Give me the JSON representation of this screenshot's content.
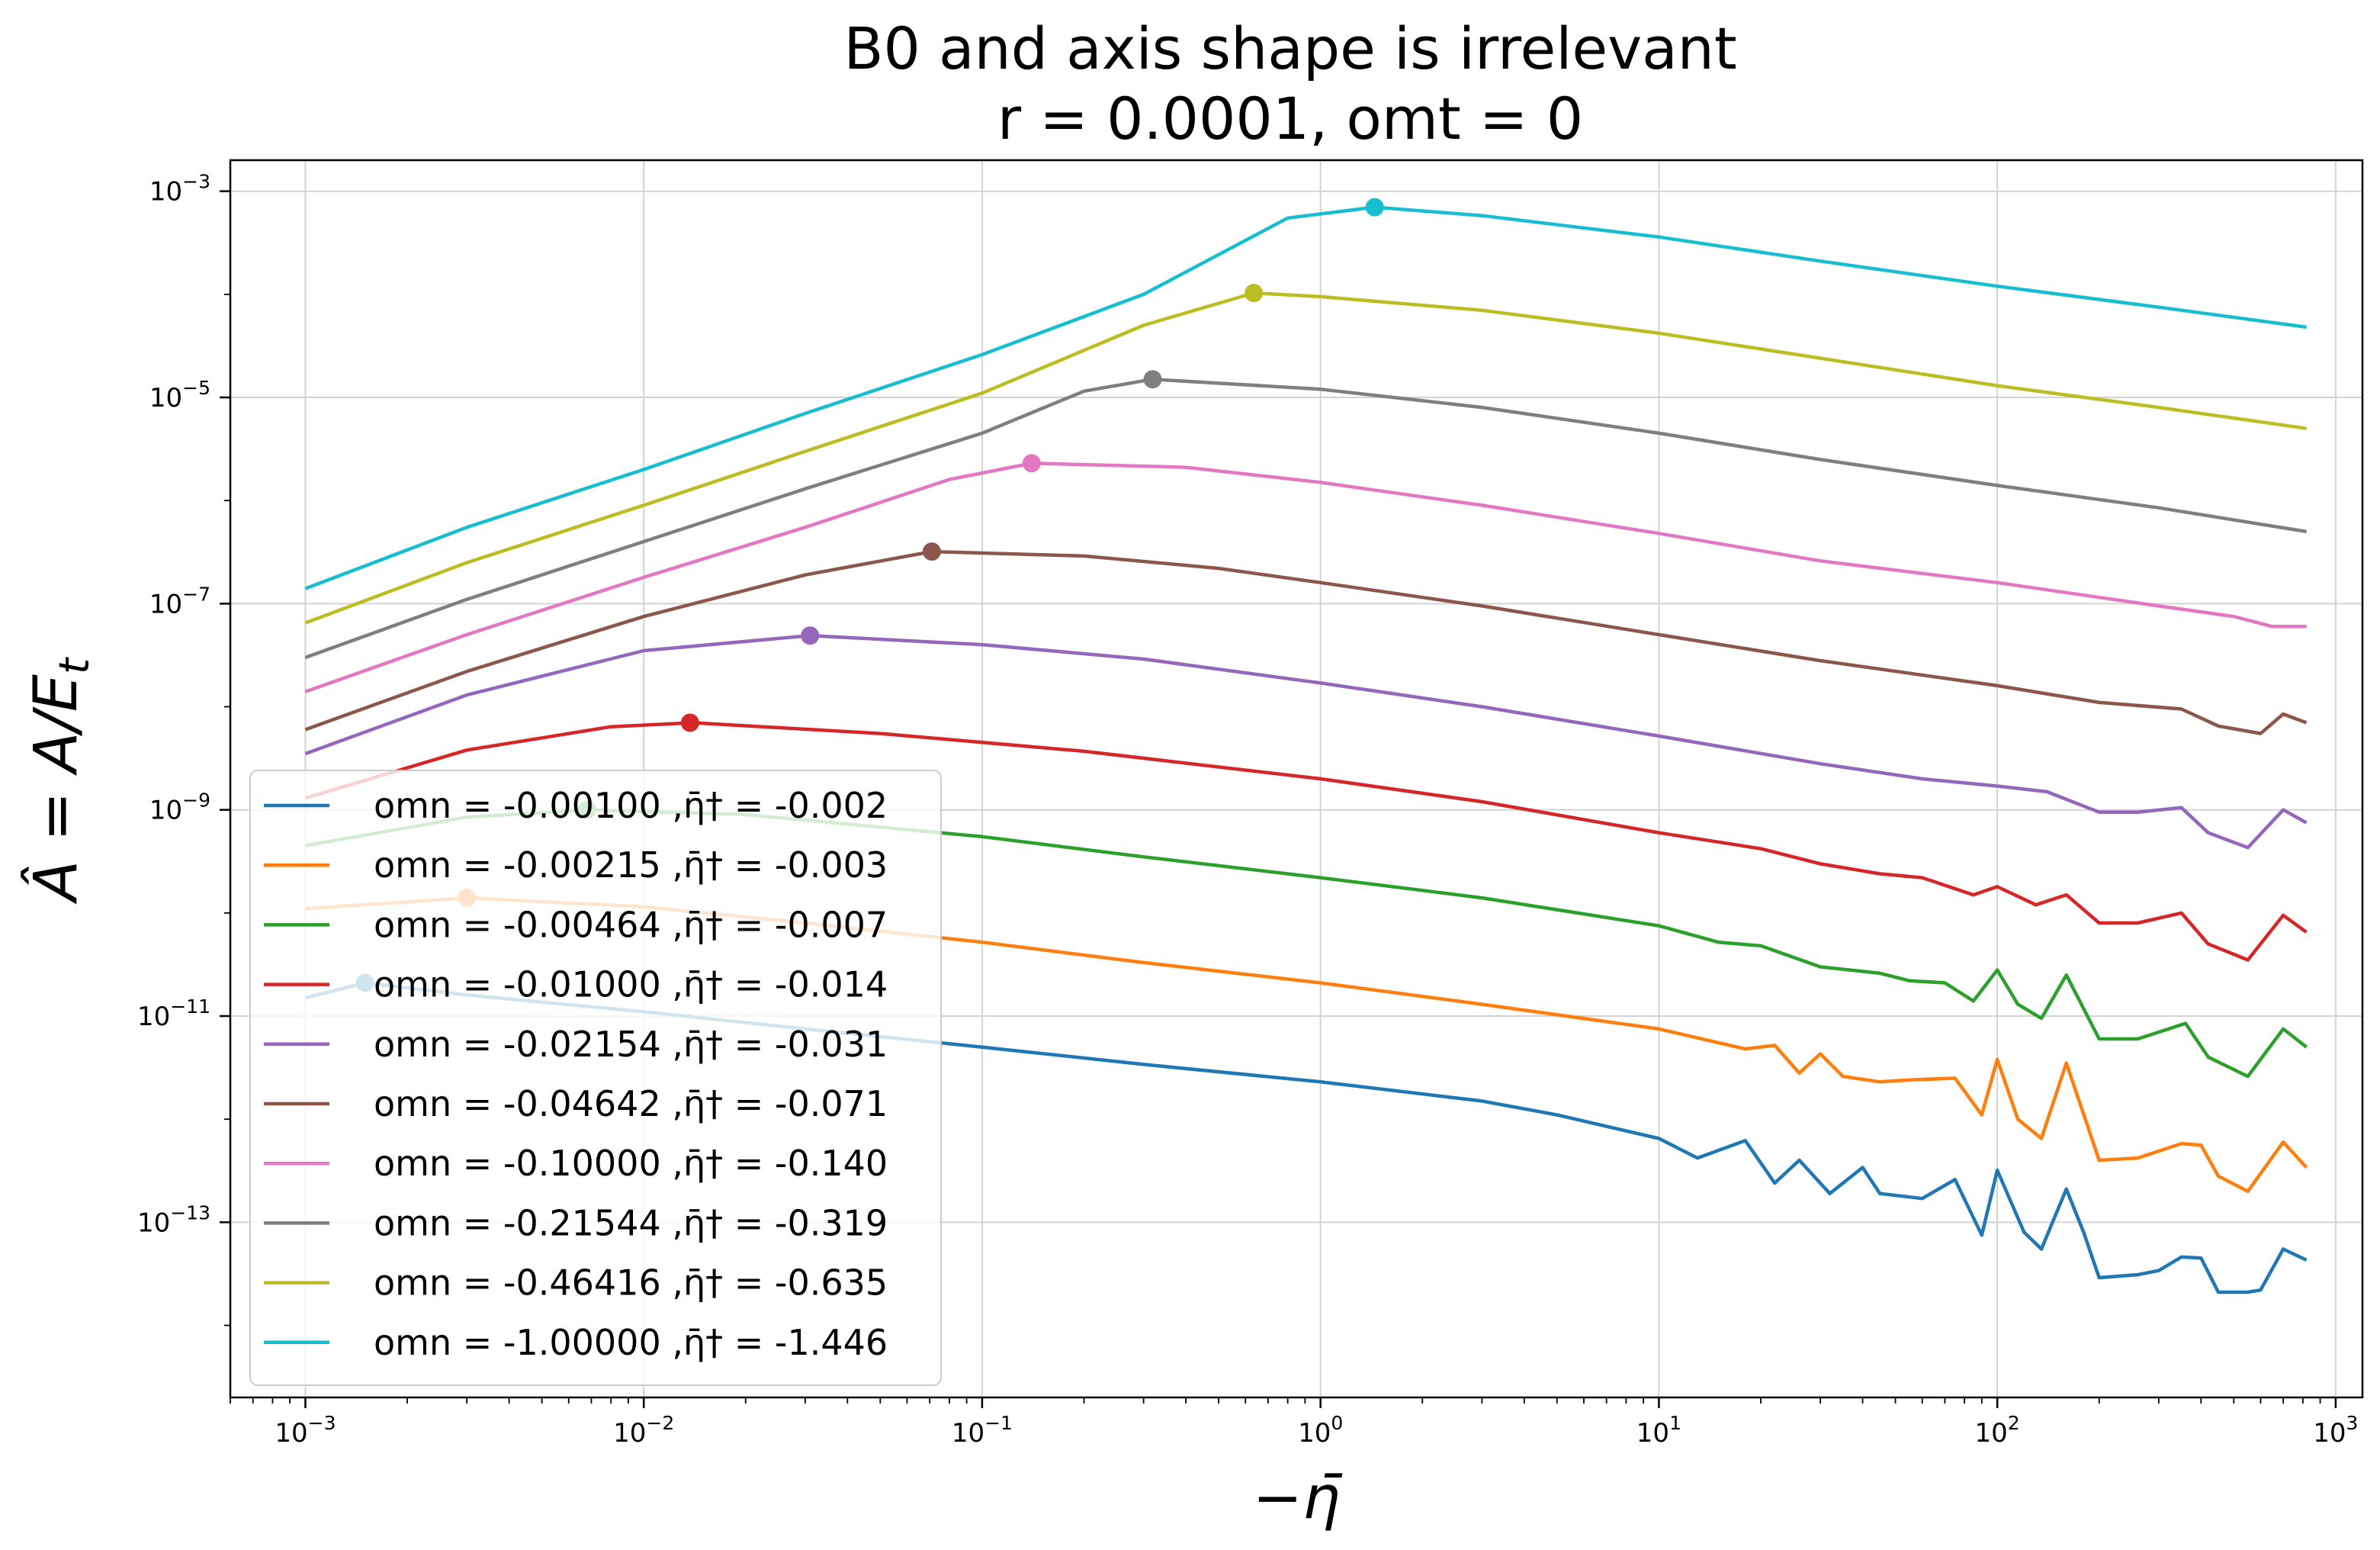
{
  "chart_data": {
    "type": "line",
    "title": "B0 and axis shape is irrelevant",
    "subtitle": "r = 0.0001, omt = 0",
    "xlabel": "−η̄",
    "ylabel": "Â = A/E",
    "ylabel_sub": "t",
    "x_scale": "log",
    "y_scale": "log",
    "xlim": [
      0.0006,
      1200
    ],
    "ylim": [
      2e-15,
      0.002
    ],
    "grid": true,
    "legend_position": "lower-left",
    "x_ticks": [
      {
        "value": 0.001,
        "base": "10",
        "exp": "−3"
      },
      {
        "value": 0.01,
        "base": "10",
        "exp": "−2"
      },
      {
        "value": 0.1,
        "base": "10",
        "exp": "−1"
      },
      {
        "value": 1,
        "base": "10",
        "exp": "0"
      },
      {
        "value": 10,
        "base": "10",
        "exp": "1"
      },
      {
        "value": 100,
        "base": "10",
        "exp": "2"
      },
      {
        "value": 1000,
        "base": "10",
        "exp": "3"
      }
    ],
    "y_ticks": [
      {
        "value": 1e-13,
        "base": "10",
        "exp": "−13"
      },
      {
        "value": 1e-11,
        "base": "10",
        "exp": "−11"
      },
      {
        "value": 1e-09,
        "base": "10",
        "exp": "−9"
      },
      {
        "value": 1e-07,
        "base": "10",
        "exp": "−7"
      },
      {
        "value": 1e-05,
        "base": "10",
        "exp": "−5"
      },
      {
        "value": 0.001,
        "base": "10",
        "exp": "−3"
      }
    ],
    "series": [
      {
        "name": "omn = -0.00100 ,η̄† = -0.002",
        "color": "#1f77b4",
        "points": [
          [
            0.001,
            1.5e-11
          ],
          [
            0.0015,
            2.1e-11
          ],
          [
            0.003,
            1.6e-11
          ],
          [
            0.01,
            1.1e-11
          ],
          [
            0.03,
            7.5e-12
          ],
          [
            0.1,
            5e-12
          ],
          [
            0.3,
            3.4e-12
          ],
          [
            1,
            2.3e-12
          ],
          [
            3,
            1.5e-12
          ],
          [
            5,
            1.1e-12
          ],
          [
            10,
            6.5e-13
          ],
          [
            13,
            4.2e-13
          ],
          [
            18,
            6.2e-13
          ],
          [
            22,
            2.4e-13
          ],
          [
            26,
            4e-13
          ],
          [
            32,
            1.9e-13
          ],
          [
            40,
            3.4e-13
          ],
          [
            45,
            1.9e-13
          ],
          [
            60,
            1.7e-13
          ],
          [
            75,
            2.6e-13
          ],
          [
            90,
            7.5e-14
          ],
          [
            100,
            3.2e-13
          ],
          [
            120,
            8e-14
          ],
          [
            135,
            5.5e-14
          ],
          [
            160,
            2.1e-13
          ],
          [
            180,
            8e-14
          ],
          [
            200,
            2.9e-14
          ],
          [
            260,
            3.1e-14
          ],
          [
            300,
            3.4e-14
          ],
          [
            350,
            4.6e-14
          ],
          [
            400,
            4.5e-14
          ],
          [
            450,
            2.1e-14
          ],
          [
            550,
            2.1e-14
          ],
          [
            600,
            2.2e-14
          ],
          [
            700,
            5.5e-14
          ],
          [
            820,
            4.3e-14
          ]
        ]
      },
      {
        "name": "omn = -0.00215 ,η̄† = -0.003",
        "color": "#ff7f0e",
        "points": [
          [
            0.001,
            1.1e-10
          ],
          [
            0.003,
            1.4e-10
          ],
          [
            0.01,
            1.15e-10
          ],
          [
            0.03,
            8e-11
          ],
          [
            0.1,
            5.2e-11
          ],
          [
            0.3,
            3.3e-11
          ],
          [
            1,
            2.1e-11
          ],
          [
            3,
            1.3e-11
          ],
          [
            10,
            7.5e-12
          ],
          [
            18,
            4.8e-12
          ],
          [
            22,
            5.2e-12
          ],
          [
            26,
            2.8e-12
          ],
          [
            30,
            4.3e-12
          ],
          [
            35,
            2.6e-12
          ],
          [
            45,
            2.3e-12
          ],
          [
            55,
            2.4e-12
          ],
          [
            75,
            2.5e-12
          ],
          [
            90,
            1.1e-12
          ],
          [
            100,
            3.8e-12
          ],
          [
            115,
            1e-12
          ],
          [
            135,
            6.5e-13
          ],
          [
            160,
            3.5e-12
          ],
          [
            200,
            4e-13
          ],
          [
            260,
            4.2e-13
          ],
          [
            350,
            5.8e-13
          ],
          [
            400,
            5.6e-13
          ],
          [
            450,
            2.8e-13
          ],
          [
            550,
            2e-13
          ],
          [
            700,
            6e-13
          ],
          [
            820,
            3.4e-13
          ]
        ]
      },
      {
        "name": "omn = -0.00464 ,η̄† = -0.007",
        "color": "#2ca02c",
        "points": [
          [
            0.001,
            4.5e-10
          ],
          [
            0.003,
            8.5e-10
          ],
          [
            0.007,
            1e-09
          ],
          [
            0.02,
            9e-10
          ],
          [
            0.1,
            5.5e-10
          ],
          [
            0.3,
            3.5e-10
          ],
          [
            1,
            2.2e-10
          ],
          [
            3,
            1.4e-10
          ],
          [
            10,
            7.5e-11
          ],
          [
            15,
            5.2e-11
          ],
          [
            20,
            4.8e-11
          ],
          [
            30,
            3e-11
          ],
          [
            45,
            2.6e-11
          ],
          [
            55,
            2.2e-11
          ],
          [
            70,
            2.1e-11
          ],
          [
            85,
            1.4e-11
          ],
          [
            100,
            2.8e-11
          ],
          [
            115,
            1.3e-11
          ],
          [
            135,
            9.5e-12
          ],
          [
            160,
            2.5e-11
          ],
          [
            200,
            6e-12
          ],
          [
            260,
            6e-12
          ],
          [
            360,
            8.5e-12
          ],
          [
            420,
            4e-12
          ],
          [
            550,
            2.6e-12
          ],
          [
            700,
            7.5e-12
          ],
          [
            820,
            5e-12
          ]
        ]
      },
      {
        "name": "omn = -0.01000 ,η̄† = -0.014",
        "color": "#d62728",
        "points": [
          [
            0.001,
            1.3e-09
          ],
          [
            0.003,
            3.8e-09
          ],
          [
            0.008,
            6.4e-09
          ],
          [
            0.014,
            7e-09
          ],
          [
            0.05,
            5.5e-09
          ],
          [
            0.2,
            3.7e-09
          ],
          [
            1,
            2e-09
          ],
          [
            3,
            1.2e-09
          ],
          [
            10,
            6e-10
          ],
          [
            20,
            4.2e-10
          ],
          [
            30,
            3e-10
          ],
          [
            45,
            2.4e-10
          ],
          [
            60,
            2.2e-10
          ],
          [
            85,
            1.5e-10
          ],
          [
            100,
            1.8e-10
          ],
          [
            130,
            1.2e-10
          ],
          [
            160,
            1.5e-10
          ],
          [
            200,
            8e-11
          ],
          [
            260,
            8e-11
          ],
          [
            350,
            1e-10
          ],
          [
            420,
            5e-11
          ],
          [
            550,
            3.5e-11
          ],
          [
            700,
            9.5e-11
          ],
          [
            820,
            6.5e-11
          ]
        ]
      },
      {
        "name": "omn = -0.02154 ,η̄† = -0.031",
        "color": "#9467bd",
        "points": [
          [
            0.001,
            3.5e-09
          ],
          [
            0.003,
            1.3e-08
          ],
          [
            0.01,
            3.5e-08
          ],
          [
            0.031,
            4.9e-08
          ],
          [
            0.1,
            4e-08
          ],
          [
            0.3,
            2.9e-08
          ],
          [
            1,
            1.7e-08
          ],
          [
            3,
            1e-08
          ],
          [
            10,
            5.2e-09
          ],
          [
            30,
            2.8e-09
          ],
          [
            60,
            2e-09
          ],
          [
            100,
            1.7e-09
          ],
          [
            140,
            1.5e-09
          ],
          [
            200,
            9.5e-10
          ],
          [
            260,
            9.5e-10
          ],
          [
            350,
            1.05e-09
          ],
          [
            420,
            6e-10
          ],
          [
            550,
            4.3e-10
          ],
          [
            700,
            1e-09
          ],
          [
            820,
            7.5e-10
          ]
        ]
      },
      {
        "name": "omn = -0.04642 ,η̄† = -0.071",
        "color": "#8c564b",
        "points": [
          [
            0.001,
            6e-09
          ],
          [
            0.003,
            2.2e-08
          ],
          [
            0.01,
            7.5e-08
          ],
          [
            0.03,
            1.9e-07
          ],
          [
            0.071,
            3.2e-07
          ],
          [
            0.2,
            2.9e-07
          ],
          [
            0.5,
            2.2e-07
          ],
          [
            1,
            1.6e-07
          ],
          [
            3,
            9.5e-08
          ],
          [
            10,
            5e-08
          ],
          [
            30,
            2.8e-08
          ],
          [
            100,
            1.6e-08
          ],
          [
            200,
            1.1e-08
          ],
          [
            350,
            9.5e-09
          ],
          [
            450,
            6.5e-09
          ],
          [
            600,
            5.5e-09
          ],
          [
            700,
            8.5e-09
          ],
          [
            820,
            7e-09
          ]
        ]
      },
      {
        "name": "omn = -0.10000 ,η̄† = -0.140",
        "color": "#e377c2",
        "points": [
          [
            0.001,
            1.4e-08
          ],
          [
            0.003,
            5e-08
          ],
          [
            0.01,
            1.8e-07
          ],
          [
            0.03,
            5.5e-07
          ],
          [
            0.08,
            1.6e-06
          ],
          [
            0.14,
            2.3e-06
          ],
          [
            0.4,
            2.1e-06
          ],
          [
            1,
            1.5e-06
          ],
          [
            3,
            9e-07
          ],
          [
            10,
            4.8e-07
          ],
          [
            30,
            2.6e-07
          ],
          [
            100,
            1.6e-07
          ],
          [
            300,
            9.5e-08
          ],
          [
            500,
            7.5e-08
          ],
          [
            650,
            6e-08
          ],
          [
            820,
            6e-08
          ]
        ]
      },
      {
        "name": "omn = -0.21544 ,η̄† = -0.319",
        "color": "#7f7f7f",
        "points": [
          [
            0.001,
            3e-08
          ],
          [
            0.003,
            1.1e-07
          ],
          [
            0.01,
            4e-07
          ],
          [
            0.03,
            1.3e-06
          ],
          [
            0.1,
            4.5e-06
          ],
          [
            0.2,
            1.15e-05
          ],
          [
            0.319,
            1.5e-05
          ],
          [
            1,
            1.2e-05
          ],
          [
            3,
            8e-06
          ],
          [
            10,
            4.5e-06
          ],
          [
            30,
            2.5e-06
          ],
          [
            100,
            1.4e-06
          ],
          [
            300,
            8.5e-07
          ],
          [
            820,
            5e-07
          ]
        ]
      },
      {
        "name": "omn = -0.46416 ,η̄† = -0.635",
        "color": "#bcbd22",
        "points": [
          [
            0.001,
            6.5e-08
          ],
          [
            0.003,
            2.5e-07
          ],
          [
            0.01,
            9e-07
          ],
          [
            0.03,
            3e-06
          ],
          [
            0.1,
            1.1e-05
          ],
          [
            0.3,
            5e-05
          ],
          [
            0.635,
            0.000103
          ],
          [
            1,
            9.5e-05
          ],
          [
            3,
            7e-05
          ],
          [
            10,
            4.2e-05
          ],
          [
            30,
            2.4e-05
          ],
          [
            100,
            1.3e-05
          ],
          [
            300,
            8e-06
          ],
          [
            820,
            5e-06
          ]
        ]
      },
      {
        "name": "omn = -1.00000 ,η̄† = -1.446",
        "color": "#17becf",
        "points": [
          [
            0.001,
            1.4e-07
          ],
          [
            0.003,
            5.5e-07
          ],
          [
            0.01,
            2e-06
          ],
          [
            0.03,
            7e-06
          ],
          [
            0.1,
            2.6e-05
          ],
          [
            0.3,
            0.0001
          ],
          [
            0.8,
            0.00055
          ],
          [
            1.446,
            0.0007
          ],
          [
            3,
            0.00058
          ],
          [
            10,
            0.00036
          ],
          [
            30,
            0.00021
          ],
          [
            100,
            0.00012
          ],
          [
            300,
            7.5e-05
          ],
          [
            820,
            4.8e-05
          ]
        ]
      }
    ],
    "peak_markers": [
      {
        "series": 0,
        "x": 0.0015,
        "y": 2.1e-11
      },
      {
        "series": 1,
        "x": 0.003,
        "y": 1.4e-10
      },
      {
        "series": 2,
        "x": 0.0068,
        "y": 1e-09
      },
      {
        "series": 3,
        "x": 0.0137,
        "y": 7e-09
      },
      {
        "series": 4,
        "x": 0.031,
        "y": 4.9e-08
      },
      {
        "series": 5,
        "x": 0.071,
        "y": 3.2e-07
      },
      {
        "series": 6,
        "x": 0.14,
        "y": 2.3e-06
      },
      {
        "series": 7,
        "x": 0.319,
        "y": 1.5e-05
      },
      {
        "series": 8,
        "x": 0.635,
        "y": 0.000103
      },
      {
        "series": 9,
        "x": 1.446,
        "y": 0.0007
      }
    ]
  }
}
